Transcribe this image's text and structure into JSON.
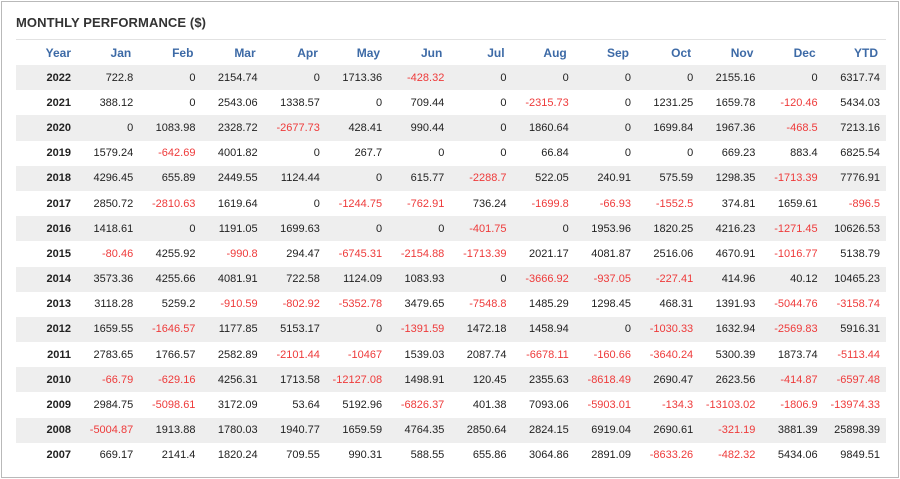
{
  "title": "MONTHLY PERFORMANCE ($)",
  "colors": {
    "header_text": "#3d6aa6",
    "negative": "#ee3a3a",
    "stripe": "#eeeeee"
  },
  "chart_data": {
    "type": "table",
    "title": "MONTHLY PERFORMANCE ($)",
    "columns": [
      "Year",
      "Jan",
      "Feb",
      "Mar",
      "Apr",
      "May",
      "Jun",
      "Jul",
      "Aug",
      "Sep",
      "Oct",
      "Nov",
      "Dec",
      "YTD"
    ],
    "rows": [
      [
        "2022",
        "722.8",
        "0",
        "2154.74",
        "0",
        "1713.36",
        "-428.32",
        "0",
        "0",
        "0",
        "0",
        "2155.16",
        "0",
        "6317.74"
      ],
      [
        "2021",
        "388.12",
        "0",
        "2543.06",
        "1338.57",
        "0",
        "709.44",
        "0",
        "-2315.73",
        "0",
        "1231.25",
        "1659.78",
        "-120.46",
        "5434.03"
      ],
      [
        "2020",
        "0",
        "1083.98",
        "2328.72",
        "-2677.73",
        "428.41",
        "990.44",
        "0",
        "1860.64",
        "0",
        "1699.84",
        "1967.36",
        "-468.5",
        "7213.16"
      ],
      [
        "2019",
        "1579.24",
        "-642.69",
        "4001.82",
        "0",
        "267.7",
        "0",
        "0",
        "66.84",
        "0",
        "0",
        "669.23",
        "883.4",
        "6825.54"
      ],
      [
        "2018",
        "4296.45",
        "655.89",
        "2449.55",
        "1124.44",
        "0",
        "615.77",
        "-2288.7",
        "522.05",
        "240.91",
        "575.59",
        "1298.35",
        "-1713.39",
        "7776.91"
      ],
      [
        "2017",
        "2850.72",
        "-2810.63",
        "1619.64",
        "0",
        "-1244.75",
        "-762.91",
        "736.24",
        "-1699.8",
        "-66.93",
        "-1552.5",
        "374.81",
        "1659.61",
        "-896.5"
      ],
      [
        "2016",
        "1418.61",
        "0",
        "1191.05",
        "1699.63",
        "0",
        "0",
        "-401.75",
        "0",
        "1953.96",
        "1820.25",
        "4216.23",
        "-1271.45",
        "10626.53"
      ],
      [
        "2015",
        "-80.46",
        "4255.92",
        "-990.8",
        "294.47",
        "-6745.31",
        "-2154.88",
        "-1713.39",
        "2021.17",
        "4081.87",
        "2516.06",
        "4670.91",
        "-1016.77",
        "5138.79"
      ],
      [
        "2014",
        "3573.36",
        "4255.66",
        "4081.91",
        "722.58",
        "1124.09",
        "1083.93",
        "0",
        "-3666.92",
        "-937.05",
        "-227.41",
        "414.96",
        "40.12",
        "10465.23"
      ],
      [
        "2013",
        "3118.28",
        "5259.2",
        "-910.59",
        "-802.92",
        "-5352.78",
        "3479.65",
        "-7548.8",
        "1485.29",
        "1298.45",
        "468.31",
        "1391.93",
        "-5044.76",
        "-3158.74"
      ],
      [
        "2012",
        "1659.55",
        "-1646.57",
        "1177.85",
        "5153.17",
        "0",
        "-1391.59",
        "1472.18",
        "1458.94",
        "0",
        "-1030.33",
        "1632.94",
        "-2569.83",
        "5916.31"
      ],
      [
        "2011",
        "2783.65",
        "1766.57",
        "2582.89",
        "-2101.44",
        "-10467",
        "1539.03",
        "2087.74",
        "-6678.11",
        "-160.66",
        "-3640.24",
        "5300.39",
        "1873.74",
        "-5113.44"
      ],
      [
        "2010",
        "-66.79",
        "-629.16",
        "4256.31",
        "1713.58",
        "-12127.08",
        "1498.91",
        "120.45",
        "2355.63",
        "-8618.49",
        "2690.47",
        "2623.56",
        "-414.87",
        "-6597.48"
      ],
      [
        "2009",
        "2984.75",
        "-5098.61",
        "3172.09",
        "53.64",
        "5192.96",
        "-6826.37",
        "401.38",
        "7093.06",
        "-5903.01",
        "-134.3",
        "-13103.02",
        "-1806.9",
        "-13974.33"
      ],
      [
        "2008",
        "-5004.87",
        "1913.88",
        "1780.03",
        "1940.77",
        "1659.59",
        "4764.35",
        "2850.64",
        "2824.15",
        "6919.04",
        "2690.61",
        "-321.19",
        "3881.39",
        "25898.39"
      ],
      [
        "2007",
        "669.17",
        "2141.4",
        "1820.24",
        "709.55",
        "990.31",
        "588.55",
        "655.86",
        "3064.86",
        "2891.09",
        "-8633.26",
        "-482.32",
        "5434.06",
        "9849.51"
      ]
    ]
  }
}
